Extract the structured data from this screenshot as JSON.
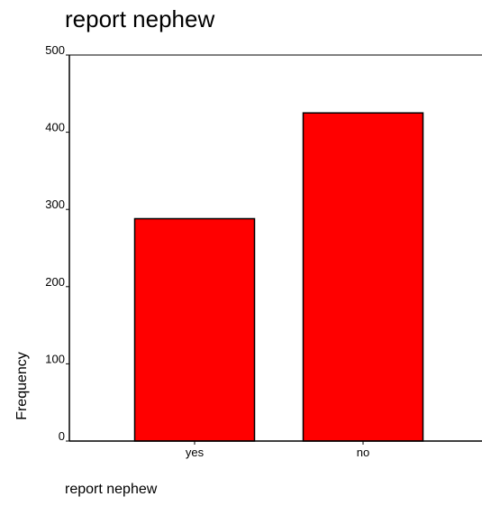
{
  "chart_data": {
    "type": "bar",
    "title": "report nephew",
    "xlabel": "report nephew",
    "ylabel": "Frequency",
    "categories": [
      "yes",
      "no"
    ],
    "values": [
      288,
      425
    ],
    "ylim": [
      0,
      500
    ],
    "yticks": [
      0,
      100,
      200,
      300,
      400,
      500
    ],
    "bar_color": "#ff0000",
    "grid": false,
    "legend": "none"
  }
}
